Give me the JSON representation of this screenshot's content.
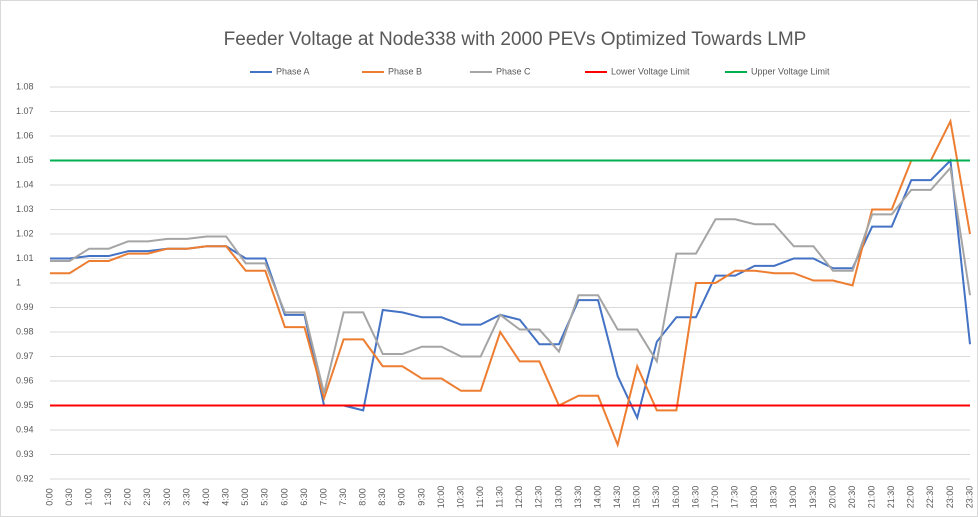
{
  "chart_data": {
    "type": "line",
    "title": "Feeder Voltage at Node338 with 2000 PEVs Optimized Towards LMP",
    "categories": [
      "0:00",
      "0:30",
      "1:00",
      "1:30",
      "2:00",
      "2:30",
      "3:00",
      "3:30",
      "4:00",
      "4:30",
      "5:00",
      "5:30",
      "6:00",
      "6:30",
      "7:00",
      "7:30",
      "8:00",
      "8:30",
      "9:00",
      "9:30",
      "10:00",
      "10:30",
      "11:00",
      "11:30",
      "12:00",
      "12:30",
      "13:00",
      "13:30",
      "14:00",
      "14:30",
      "15:00",
      "15:30",
      "16:00",
      "16:30",
      "17:00",
      "17:30",
      "18:00",
      "18:30",
      "19:00",
      "19:30",
      "20:00",
      "20:30",
      "21:00",
      "21:30",
      "22:00",
      "22:30",
      "23:00",
      "23:30"
    ],
    "series": [
      {
        "name": "Phase A",
        "color": "#4472c4",
        "values": [
          1.01,
          1.01,
          1.011,
          1.011,
          1.013,
          1.013,
          1.014,
          1.014,
          1.015,
          1.015,
          1.01,
          1.01,
          0.987,
          0.987,
          0.95,
          0.95,
          0.948,
          0.989,
          0.988,
          0.986,
          0.986,
          0.983,
          0.983,
          0.987,
          0.985,
          0.975,
          0.975,
          0.993,
          0.993,
          0.962,
          0.945,
          0.976,
          0.986,
          0.986,
          1.003,
          1.003,
          1.007,
          1.007,
          1.01,
          1.01,
          1.006,
          1.006,
          1.023,
          1.023,
          1.042,
          1.042,
          1.05,
          0.975
        ]
      },
      {
        "name": "Phase B",
        "color": "#ed7d31",
        "values": [
          1.004,
          1.004,
          1.009,
          1.009,
          1.012,
          1.012,
          1.014,
          1.014,
          1.015,
          1.015,
          1.005,
          1.005,
          0.982,
          0.982,
          0.953,
          0.977,
          0.977,
          0.966,
          0.966,
          0.961,
          0.961,
          0.956,
          0.956,
          0.98,
          0.968,
          0.968,
          0.95,
          0.954,
          0.954,
          0.934,
          0.966,
          0.948,
          0.948,
          1.0,
          1.0,
          1.005,
          1.005,
          1.004,
          1.004,
          1.001,
          1.001,
          0.999,
          1.03,
          1.03,
          1.05,
          1.05,
          1.066,
          1.02
        ]
      },
      {
        "name": "Phase C",
        "color": "#a5a5a5",
        "values": [
          1.009,
          1.009,
          1.014,
          1.014,
          1.017,
          1.017,
          1.018,
          1.018,
          1.019,
          1.019,
          1.008,
          1.008,
          0.988,
          0.988,
          0.955,
          0.988,
          0.988,
          0.971,
          0.971,
          0.974,
          0.974,
          0.97,
          0.97,
          0.987,
          0.981,
          0.981,
          0.972,
          0.995,
          0.995,
          0.981,
          0.981,
          0.968,
          1.012,
          1.012,
          1.026,
          1.026,
          1.024,
          1.024,
          1.015,
          1.015,
          1.005,
          1.005,
          1.028,
          1.028,
          1.038,
          1.038,
          1.047,
          0.995
        ]
      },
      {
        "name": "Lower Voltage Limit",
        "color": "#ff0000",
        "values": [
          0.95,
          0.95,
          0.95,
          0.95,
          0.95,
          0.95,
          0.95,
          0.95,
          0.95,
          0.95,
          0.95,
          0.95,
          0.95,
          0.95,
          0.95,
          0.95,
          0.95,
          0.95,
          0.95,
          0.95,
          0.95,
          0.95,
          0.95,
          0.95,
          0.95,
          0.95,
          0.95,
          0.95,
          0.95,
          0.95,
          0.95,
          0.95,
          0.95,
          0.95,
          0.95,
          0.95,
          0.95,
          0.95,
          0.95,
          0.95,
          0.95,
          0.95,
          0.95,
          0.95,
          0.95,
          0.95,
          0.95,
          0.95
        ]
      },
      {
        "name": "Upper Voltage Limit",
        "color": "#00b050",
        "values": [
          1.05,
          1.05,
          1.05,
          1.05,
          1.05,
          1.05,
          1.05,
          1.05,
          1.05,
          1.05,
          1.05,
          1.05,
          1.05,
          1.05,
          1.05,
          1.05,
          1.05,
          1.05,
          1.05,
          1.05,
          1.05,
          1.05,
          1.05,
          1.05,
          1.05,
          1.05,
          1.05,
          1.05,
          1.05,
          1.05,
          1.05,
          1.05,
          1.05,
          1.05,
          1.05,
          1.05,
          1.05,
          1.05,
          1.05,
          1.05,
          1.05,
          1.05,
          1.05,
          1.05,
          1.05,
          1.05,
          1.05,
          1.05
        ]
      }
    ],
    "ylim": [
      0.92,
      1.08
    ],
    "yticks": [
      0.92,
      0.93,
      0.94,
      0.95,
      0.96,
      0.97,
      0.98,
      0.99,
      1,
      1.01,
      1.02,
      1.03,
      1.04,
      1.05,
      1.06,
      1.07,
      1.08
    ],
    "grid": true,
    "legend": "top"
  }
}
